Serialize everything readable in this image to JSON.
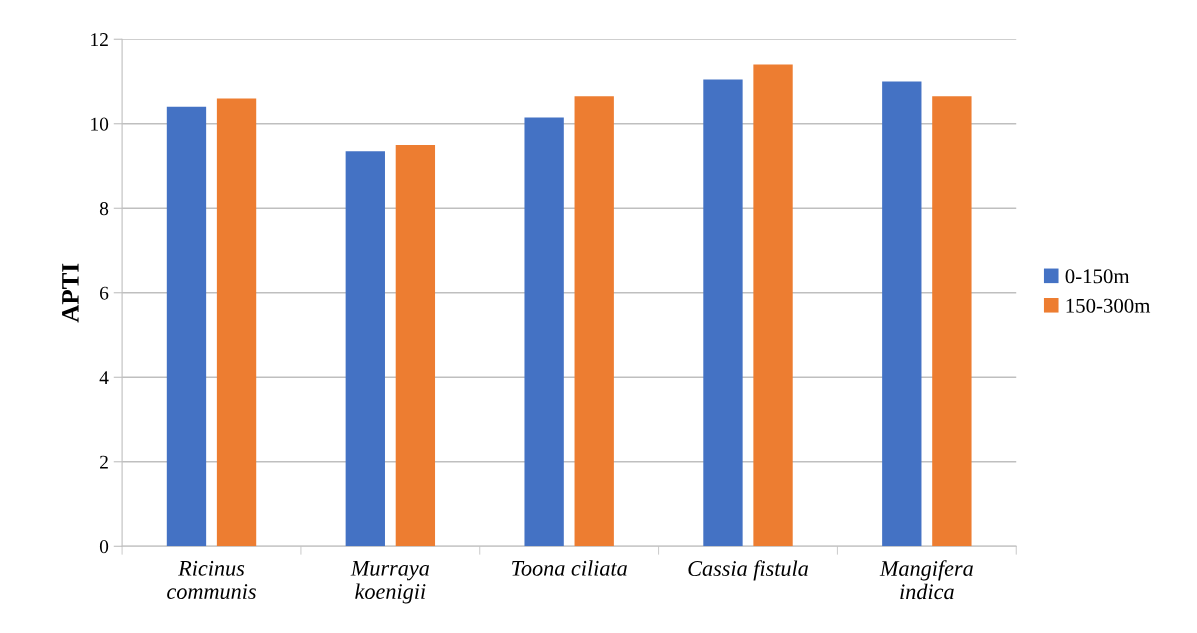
{
  "chart_data": {
    "type": "bar",
    "ylabel": "APTI",
    "categories": [
      "Ricinus\ncommunis",
      "Murraya\nkoenigii",
      "Toona ciliata",
      "Cassia fistula",
      "Mangifera\nindica"
    ],
    "series": [
      {
        "name": "0-150m",
        "color": "#4472c4",
        "values": [
          10.4,
          9.35,
          10.15,
          11.05,
          11.0
        ]
      },
      {
        "name": "150-300m",
        "color": "#ed7d31",
        "values": [
          10.6,
          9.5,
          10.65,
          11.4,
          10.65
        ]
      }
    ],
    "ylim": [
      0,
      12
    ],
    "yticks": [
      0,
      2,
      4,
      6,
      8,
      10,
      12
    ],
    "grid": "y",
    "legend": "right"
  }
}
